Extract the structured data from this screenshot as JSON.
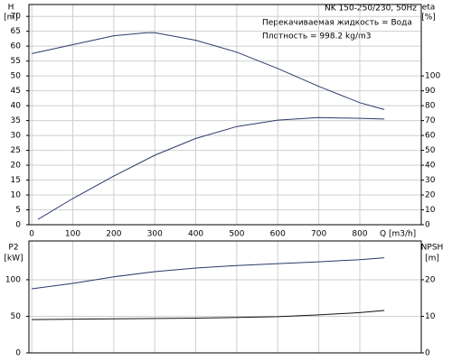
{
  "chart_data": [
    {
      "type": "line",
      "title": "NK 150-250/230, 50Hz",
      "annotations": [
        "Перекачиваемая жидкость = Вода",
        "Плотность = 998.2 kg/m3"
      ],
      "ylabel": "H",
      "yunit": "[m]",
      "y2label": "eta",
      "y2unit": "[%]",
      "xlabel": "Q [m3/h]",
      "xlim": [
        -7,
        950
      ],
      "xticks": [
        0,
        100,
        200,
        300,
        400,
        500,
        600,
        700,
        800
      ],
      "ylim": [
        0,
        74
      ],
      "yticks": [
        0,
        5,
        10,
        15,
        20,
        25,
        30,
        35,
        40,
        45,
        50,
        55,
        60,
        65,
        70
      ],
      "y2lim": [
        0,
        148
      ],
      "y2ticks": [
        0,
        10,
        20,
        30,
        40,
        50,
        60,
        70,
        80,
        90,
        100
      ],
      "grid": true,
      "series": [
        {
          "color": "#2b3a6b",
          "x": [
            0,
            100,
            200,
            280,
            300,
            400,
            500,
            600,
            700,
            800,
            860
          ],
          "values": [
            57.5,
            60.5,
            63.5,
            64.5,
            64.5,
            62,
            58,
            52.5,
            46.5,
            41,
            38.7
          ]
        },
        {
          "color": "#2b3a6b",
          "axis": "y2",
          "x": [
            15,
            100,
            200,
            300,
            400,
            500,
            600,
            700,
            800,
            860
          ],
          "values": [
            3.6,
            17.6,
            32.7,
            46.7,
            58,
            66,
            70.3,
            72,
            71.5,
            71
          ]
        }
      ]
    },
    {
      "type": "line",
      "ylabel": "P2",
      "yunit": "[kW]",
      "y2label": "NPSH",
      "y2unit": "[m]",
      "xlim": [
        -7,
        950
      ],
      "ylim": [
        0,
        153
      ],
      "yticks": [
        0,
        50,
        100
      ],
      "y2lim": [
        0,
        30.6
      ],
      "y2ticks": [
        0,
        10,
        20
      ],
      "grid": true,
      "series": [
        {
          "color": "#2b3a6b",
          "x": [
            0,
            100,
            200,
            300,
            400,
            500,
            600,
            700,
            800,
            860
          ],
          "values": [
            87.6,
            95,
            104,
            111,
            116,
            119.5,
            122,
            124.5,
            127.5,
            130
          ]
        },
        {
          "color": "#111111",
          "axis": "y2",
          "x": [
            0,
            200,
            400,
            500,
            600,
            700,
            800,
            860
          ],
          "values": [
            9.1,
            9.3,
            9.5,
            9.7,
            9.9,
            10.4,
            11,
            11.6
          ]
        }
      ]
    }
  ]
}
